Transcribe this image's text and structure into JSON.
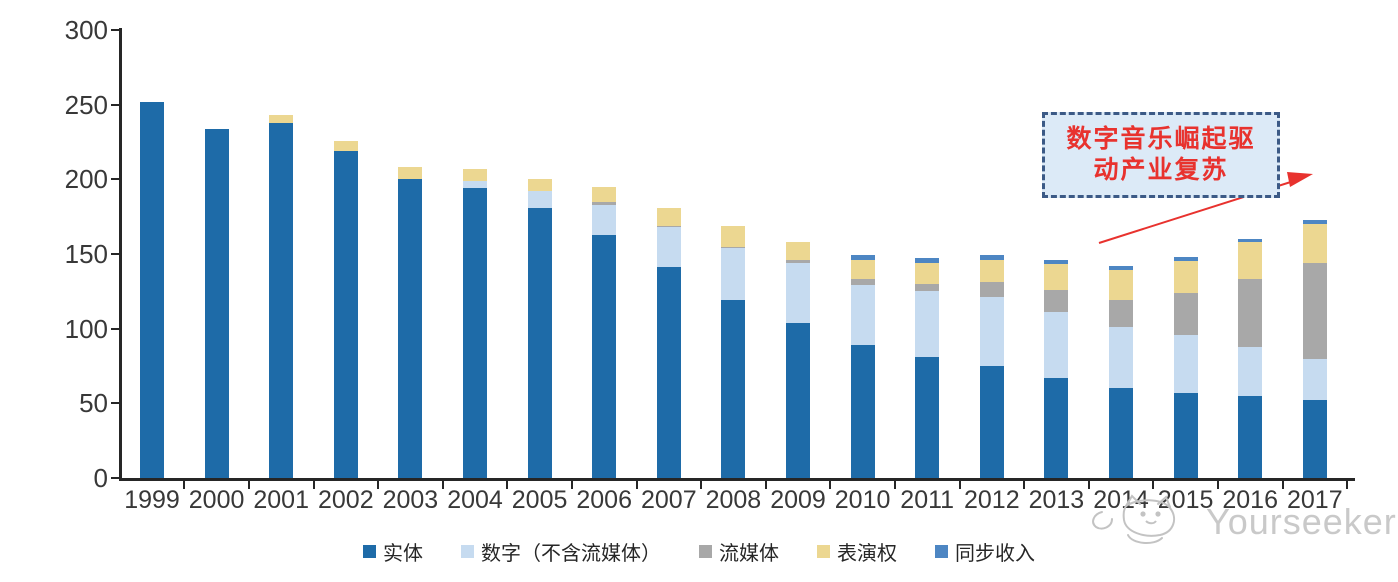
{
  "chart_data": {
    "type": "bar",
    "stacked": true,
    "title": "",
    "xlabel": "",
    "ylabel": "",
    "categories": [
      "1999",
      "2000",
      "2001",
      "2002",
      "2003",
      "2004",
      "2005",
      "2006",
      "2007",
      "2008",
      "2009",
      "2010",
      "2011",
      "2012",
      "2013",
      "2014",
      "2015",
      "2016",
      "2017"
    ],
    "series": [
      {
        "name": "实体",
        "color": "#1e6ba8",
        "values": [
          252,
          234,
          238,
          219,
          200,
          194,
          181,
          163,
          141,
          119,
          104,
          89,
          81,
          75,
          67,
          60,
          57,
          55,
          52
        ]
      },
      {
        "name": "数字（不含流媒体）",
        "color": "#c6dbf0",
        "values": [
          0,
          0,
          0,
          0,
          0,
          5,
          11,
          20,
          27,
          35,
          40,
          40,
          44,
          46,
          44,
          41,
          39,
          33,
          28
        ]
      },
      {
        "name": "流媒体",
        "color": "#a8a8a8",
        "values": [
          0,
          0,
          0,
          0,
          0,
          0,
          0,
          2,
          1,
          1,
          2,
          4,
          5,
          10,
          15,
          18,
          28,
          45,
          64
        ]
      },
      {
        "name": "表演权",
        "color": "#ecd791",
        "values": [
          0,
          0,
          5,
          7,
          8,
          8,
          8,
          10,
          12,
          14,
          12,
          13,
          14,
          15,
          17,
          20,
          21,
          25,
          26
        ]
      },
      {
        "name": "同步收入",
        "color": "#4d86c3",
        "values": [
          0,
          0,
          0,
          0,
          0,
          0,
          0,
          0,
          0,
          0,
          0,
          3,
          3,
          3,
          3,
          3,
          3,
          2,
          3
        ]
      }
    ],
    "ylim": [
      0,
      300
    ],
    "yticks": [
      0,
      50,
      100,
      150,
      200,
      250,
      300
    ],
    "grid": false,
    "legend_position": "bottom",
    "axis_color": "#262626"
  },
  "annotation": {
    "line1": "数字音乐崛起驱",
    "line2": "动产业复苏",
    "text_color": "#e8322e",
    "border_color": "#3c5a86",
    "fill_color": "#dceaf7",
    "arrow_color": "#e8322e"
  },
  "watermark": {
    "text": "Yourseeker",
    "color": "#c9c9c9",
    "logo_icon": "cat-logo-icon"
  }
}
